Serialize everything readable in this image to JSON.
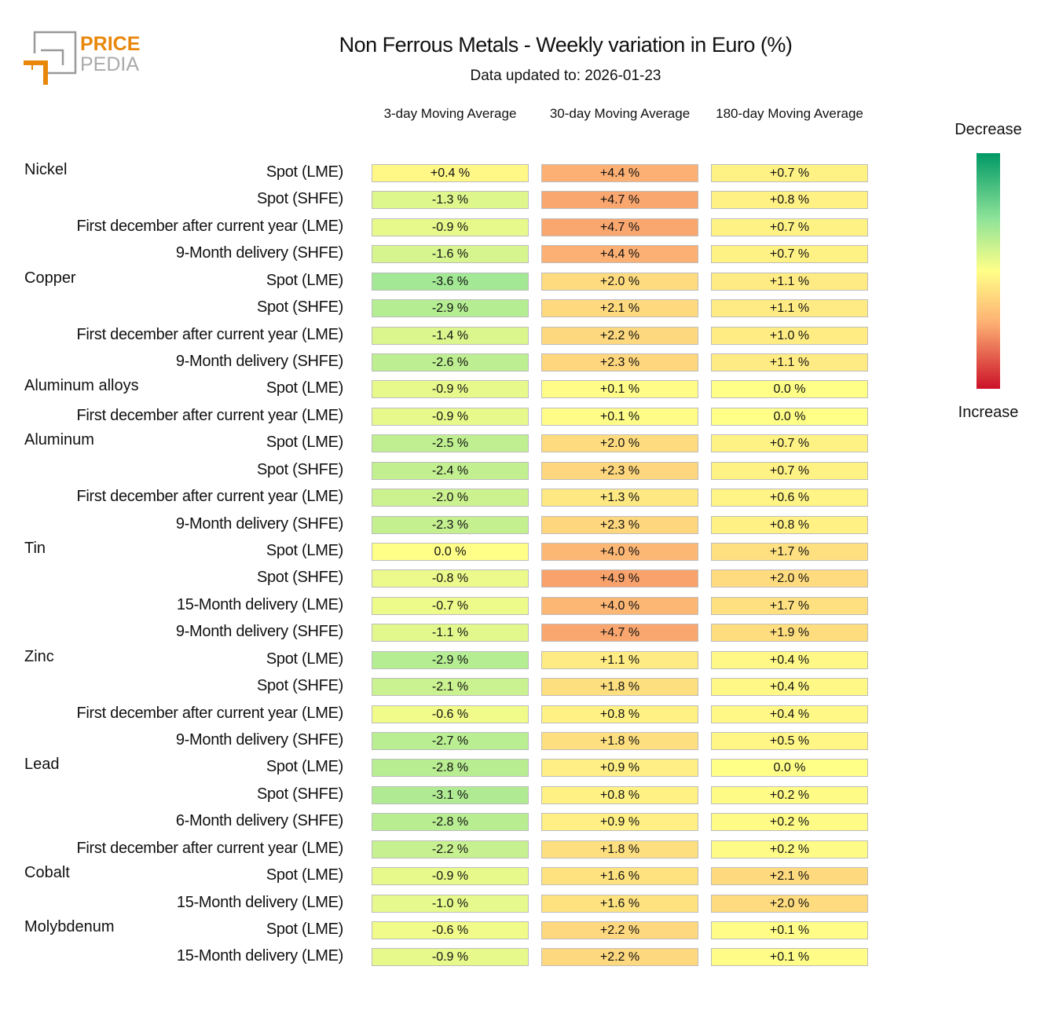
{
  "logo_text": [
    "PRICE",
    "PEDIA"
  ],
  "title": "Non Ferrous Metals - Weekly variation in Euro (%)",
  "subtitle": "Data updated to: 2026-01-23",
  "colorbar": {
    "top_label": "Decrease",
    "bottom_label": "Increase",
    "colors": [
      "#009966",
      "#8fe398",
      "#ffff88",
      "#fdb073",
      "#cc1128"
    ]
  },
  "chart_data": {
    "type": "heatmap",
    "title": "Non Ferrous Metals - Weekly variation in Euro (%)",
    "columns": [
      "3-day Moving Average",
      "30-day Moving Average",
      "180-day Moving Average"
    ],
    "value_suffix": " %",
    "groups": [
      {
        "name": "Nickel",
        "rows": [
          {
            "label": "Spot (LME)",
            "values": [
              0.4,
              4.4,
              0.7
            ]
          },
          {
            "label": "Spot (SHFE)",
            "values": [
              -1.3,
              4.7,
              0.8
            ]
          },
          {
            "label": "First december after current year (LME)",
            "values": [
              -0.9,
              4.7,
              0.7
            ]
          },
          {
            "label": "9-Month delivery (SHFE)",
            "values": [
              -1.6,
              4.4,
              0.7
            ]
          }
        ]
      },
      {
        "name": "Copper",
        "rows": [
          {
            "label": "Spot (LME)",
            "values": [
              -3.6,
              2.0,
              1.1
            ]
          },
          {
            "label": "Spot (SHFE)",
            "values": [
              -2.9,
              2.1,
              1.1
            ]
          },
          {
            "label": "First december after current year (LME)",
            "values": [
              -1.4,
              2.2,
              1.0
            ]
          },
          {
            "label": "9-Month delivery (SHFE)",
            "values": [
              -2.6,
              2.3,
              1.1
            ]
          }
        ]
      },
      {
        "name": "Aluminum alloys",
        "rows": [
          {
            "label": "Spot (LME)",
            "values": [
              -0.9,
              0.1,
              0.0
            ]
          },
          {
            "label": "First december after current year (LME)",
            "values": [
              -0.9,
              0.1,
              0.0
            ]
          }
        ]
      },
      {
        "name": "Aluminum",
        "rows": [
          {
            "label": "Spot (LME)",
            "values": [
              -2.5,
              2.0,
              0.7
            ]
          },
          {
            "label": "Spot (SHFE)",
            "values": [
              -2.4,
              2.3,
              0.7
            ]
          },
          {
            "label": "First december after current year (LME)",
            "values": [
              -2.0,
              1.3,
              0.6
            ]
          },
          {
            "label": "9-Month delivery (SHFE)",
            "values": [
              -2.3,
              2.3,
              0.8
            ]
          }
        ]
      },
      {
        "name": "Tin",
        "rows": [
          {
            "label": "Spot (LME)",
            "values": [
              0.0,
              4.0,
              1.7
            ]
          },
          {
            "label": "Spot (SHFE)",
            "values": [
              -0.8,
              4.9,
              2.0
            ]
          },
          {
            "label": "15-Month delivery (LME)",
            "values": [
              -0.7,
              4.0,
              1.7
            ]
          },
          {
            "label": "9-Month delivery (SHFE)",
            "values": [
              -1.1,
              4.7,
              1.9
            ]
          }
        ]
      },
      {
        "name": "Zinc",
        "rows": [
          {
            "label": "Spot (LME)",
            "values": [
              -2.9,
              1.1,
              0.4
            ]
          },
          {
            "label": "Spot (SHFE)",
            "values": [
              -2.1,
              1.8,
              0.4
            ]
          },
          {
            "label": "First december after current year (LME)",
            "values": [
              -0.6,
              0.8,
              0.4
            ]
          },
          {
            "label": "9-Month delivery (SHFE)",
            "values": [
              -2.7,
              1.8,
              0.5
            ]
          }
        ]
      },
      {
        "name": "Lead",
        "rows": [
          {
            "label": "Spot (LME)",
            "values": [
              -2.8,
              0.9,
              0.0
            ]
          },
          {
            "label": "Spot (SHFE)",
            "values": [
              -3.1,
              0.8,
              0.2
            ]
          },
          {
            "label": "6-Month delivery (SHFE)",
            "values": [
              -2.8,
              0.9,
              0.2
            ]
          },
          {
            "label": "First december after current year (LME)",
            "values": [
              -2.2,
              1.8,
              0.2
            ]
          }
        ]
      },
      {
        "name": "Cobalt",
        "rows": [
          {
            "label": "Spot (LME)",
            "values": [
              -0.9,
              1.6,
              2.1
            ]
          },
          {
            "label": "15-Month delivery (LME)",
            "values": [
              -1.0,
              1.6,
              2.0
            ]
          }
        ]
      },
      {
        "name": "Molybdenum",
        "rows": [
          {
            "label": "Spot (LME)",
            "values": [
              -0.6,
              2.2,
              0.1
            ]
          },
          {
            "label": "15-Month delivery (LME)",
            "values": [
              -0.9,
              2.2,
              0.1
            ]
          }
        ]
      }
    ]
  }
}
